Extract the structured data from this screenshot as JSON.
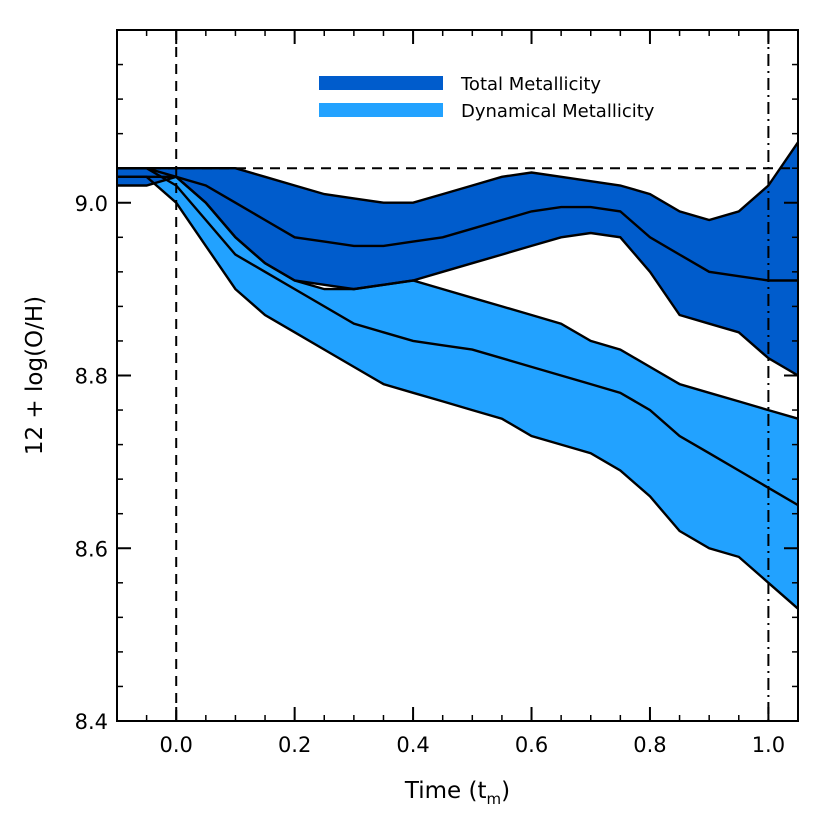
{
  "chart_data": {
    "type": "area",
    "xlabel_main": "Time (t",
    "xlabel_sub": "m",
    "xlabel_close": ")",
    "ylabel": "12 + log(O/H)",
    "xlim": [
      -0.1,
      1.05
    ],
    "ylim": [
      8.4,
      9.2
    ],
    "xticks": [
      {
        "value": 0.0,
        "label": "0.0"
      },
      {
        "value": 0.2,
        "label": "0.2"
      },
      {
        "value": 0.4,
        "label": "0.4"
      },
      {
        "value": 0.6,
        "label": "0.6"
      },
      {
        "value": 0.8,
        "label": "0.8"
      },
      {
        "value": 1.0,
        "label": "1.0"
      }
    ],
    "yticks": [
      {
        "value": 8.4,
        "label": "8.4"
      },
      {
        "value": 8.6,
        "label": "8.6"
      },
      {
        "value": 8.8,
        "label": "8.8"
      },
      {
        "value": 9.0,
        "label": "9.0"
      }
    ],
    "reference_lines": {
      "horizontal_dashed_y": 9.04,
      "vertical_dashed_x": 0.0,
      "vertical_dashdot_x": 1.0
    },
    "legend_position": "top-center",
    "series": [
      {
        "name": "Dynamical Metallicity",
        "color": "#22a2ff",
        "x": [
          -0.1,
          -0.05,
          0.0,
          0.05,
          0.1,
          0.15,
          0.2,
          0.25,
          0.3,
          0.35,
          0.4,
          0.45,
          0.5,
          0.55,
          0.6,
          0.65,
          0.7,
          0.75,
          0.8,
          0.85,
          0.9,
          0.95,
          1.0,
          1.05
        ],
        "upper": [
          9.04,
          9.04,
          9.03,
          9.0,
          8.96,
          8.93,
          8.91,
          8.9,
          8.9,
          8.905,
          8.91,
          8.9,
          8.89,
          8.88,
          8.87,
          8.86,
          8.84,
          8.83,
          8.81,
          8.79,
          8.78,
          8.77,
          8.76,
          8.75
        ],
        "median": [
          9.04,
          9.04,
          9.02,
          8.98,
          8.94,
          8.92,
          8.9,
          8.88,
          8.86,
          8.85,
          8.84,
          8.835,
          8.83,
          8.82,
          8.81,
          8.8,
          8.79,
          8.78,
          8.76,
          8.73,
          8.71,
          8.69,
          8.67,
          8.65
        ],
        "lower": [
          9.03,
          9.03,
          9.0,
          8.95,
          8.9,
          8.87,
          8.85,
          8.83,
          8.81,
          8.79,
          8.78,
          8.77,
          8.76,
          8.75,
          8.73,
          8.72,
          8.71,
          8.69,
          8.66,
          8.62,
          8.6,
          8.59,
          8.56,
          8.53
        ]
      },
      {
        "name": "Total Metallicity",
        "color": "#005ccc",
        "x": [
          -0.1,
          -0.05,
          0.0,
          0.05,
          0.1,
          0.15,
          0.2,
          0.25,
          0.3,
          0.35,
          0.4,
          0.45,
          0.5,
          0.55,
          0.6,
          0.65,
          0.7,
          0.75,
          0.8,
          0.85,
          0.9,
          0.95,
          1.0,
          1.05
        ],
        "upper": [
          9.04,
          9.04,
          9.04,
          9.04,
          9.04,
          9.03,
          9.02,
          9.01,
          9.005,
          9.0,
          9.0,
          9.01,
          9.02,
          9.03,
          9.035,
          9.03,
          9.025,
          9.02,
          9.01,
          8.99,
          8.98,
          8.99,
          9.02,
          9.07
        ],
        "median": [
          9.03,
          9.03,
          9.03,
          9.02,
          9.0,
          8.98,
          8.96,
          8.955,
          8.95,
          8.95,
          8.955,
          8.96,
          8.97,
          8.98,
          8.99,
          8.995,
          8.995,
          8.99,
          8.96,
          8.94,
          8.92,
          8.915,
          8.91,
          8.91
        ],
        "lower": [
          9.02,
          9.02,
          9.03,
          9.0,
          8.96,
          8.93,
          8.91,
          8.905,
          8.9,
          8.905,
          8.91,
          8.92,
          8.93,
          8.94,
          8.95,
          8.96,
          8.965,
          8.96,
          8.92,
          8.87,
          8.86,
          8.85,
          8.82,
          8.8
        ]
      }
    ]
  }
}
